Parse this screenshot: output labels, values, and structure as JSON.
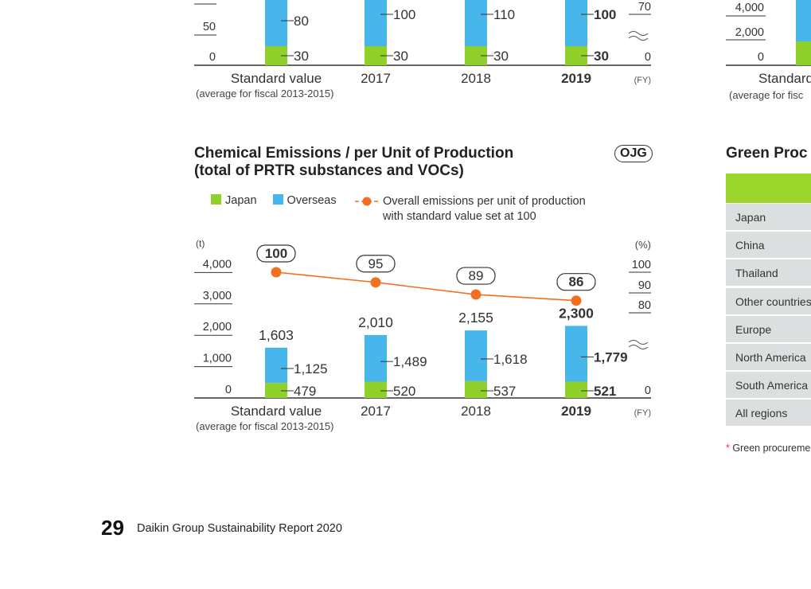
{
  "colors": {
    "japan": "#8fd12a",
    "overseas": "#47b6ea",
    "line": "#f26f21",
    "axis": "#333333",
    "table_header": "#9bd42a",
    "table_cell": "#dcdfe0"
  },
  "top_chart": {
    "y_ticks": [
      "0",
      "50"
    ],
    "right_ticks": [
      "70",
      "0"
    ],
    "x_labels": [
      "Standard value",
      "2017",
      "2018",
      "2019"
    ],
    "x_sub": "(average for fiscal 2013-2015)",
    "fy": "(FY)",
    "japan_labels": [
      "30",
      "30",
      "30",
      "30"
    ],
    "overseas_labels": [
      "80",
      "100",
      "110",
      "100"
    ]
  },
  "top_right_chart": {
    "y_ticks": [
      "4,000",
      "2,000",
      "0"
    ],
    "x_label": "Standard",
    "x_sub": "(average for fisc"
  },
  "chemical": {
    "title_line1": "Chemical Emissions / per Unit of Production",
    "title_line2": "(total of PRTR substances and VOCs)",
    "badge": "OJG",
    "legend": {
      "japan": "Japan",
      "overseas": "Overseas",
      "line_1": "Overall emissions per unit of production",
      "line_2": "with standard value set at 100"
    }
  },
  "chart_data": {
    "type": "bar",
    "title": "Chemical Emissions / per Unit of Production (total of PRTR substances and VOCs)",
    "categories": [
      "Standard value",
      "2017",
      "2018",
      "2019"
    ],
    "category_note": "(average for fiscal 2013-2015)",
    "xlabel": "(FY)",
    "ylabel": "(t)",
    "ylabel_right": "(%)",
    "ylim": [
      0,
      4000
    ],
    "yticks": [
      "0",
      "1,000",
      "2,000",
      "3,000",
      "4,000"
    ],
    "right_ticks": [
      "100",
      "90",
      "80",
      "0"
    ],
    "stacked": true,
    "series": [
      {
        "name": "Japan",
        "values": [
          479,
          520,
          537,
          521
        ],
        "labels": [
          "479",
          "520",
          "537",
          "521"
        ]
      },
      {
        "name": "Overseas",
        "values": [
          1125,
          1489,
          1618,
          1779
        ],
        "labels": [
          "1,125",
          "1,489",
          "1,618",
          "1,779"
        ]
      }
    ],
    "totals": [
      "1,603",
      "2,010",
      "2,155",
      "2,300"
    ],
    "line": {
      "name": "Overall emissions per unit of production with standard value set at 100",
      "values": [
        100,
        95,
        89,
        86
      ],
      "labels": [
        "100",
        "95",
        "89",
        "86"
      ]
    },
    "grid": false,
    "legend_position": "top"
  },
  "green_table": {
    "title": "Green Proc",
    "rows": [
      "Japan",
      "China",
      "Thailand",
      "Other countries",
      "Europe",
      "North America",
      "South America",
      "All regions"
    ],
    "footnote_mark": "*",
    "footnote": "Green procureme"
  },
  "footer": {
    "page": "29",
    "text": "Daikin Group Sustainability Report 2020"
  }
}
